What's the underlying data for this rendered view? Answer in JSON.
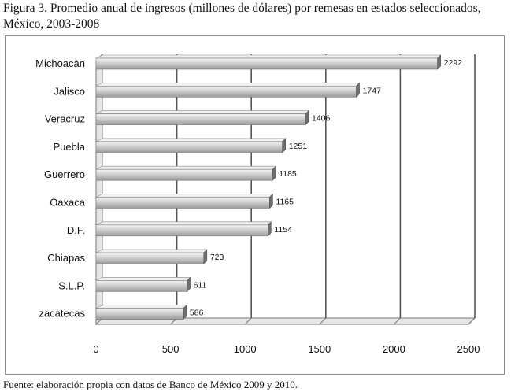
{
  "caption": "Figura 3. Promedio anual de ingresos (millones de dólares) por remesas en estados seleccionados, México, 2003-2008",
  "source": "Fuente: elaboración propia con datos de Banco de México 2009 y 2010.",
  "colors": {
    "bar_top": "#f2f2f2",
    "bar_mid": "#c9c9c9",
    "bar_bottom": "#8c8c8c",
    "grid": "#555555",
    "wall": "#dcdcdc"
  },
  "chart_data": {
    "type": "bar",
    "orientation": "horizontal",
    "title": "",
    "xlabel": "",
    "ylabel": "",
    "categories": [
      "Michoacàn",
      "Jalisco",
      "Veracruz",
      "Puebla",
      "Guerrero",
      "Oaxaca",
      "D.F.",
      "Chiapas",
      "S.L.P.",
      "zacatecas"
    ],
    "values": [
      2292,
      1747,
      1406,
      1251,
      1185,
      1165,
      1154,
      723,
      611,
      586
    ],
    "value_labels": [
      "2292",
      "1747",
      "1406",
      "1251",
      "1185",
      "1165",
      "1154",
      "723",
      "611",
      "586"
    ],
    "xlim": [
      0,
      2500
    ],
    "xticks": [
      0,
      500,
      1000,
      1500,
      2000,
      2500
    ],
    "xtick_labels": [
      "0",
      "500",
      "1000",
      "1500",
      "2000",
      "2500"
    ],
    "grid": true,
    "legend": "none"
  }
}
